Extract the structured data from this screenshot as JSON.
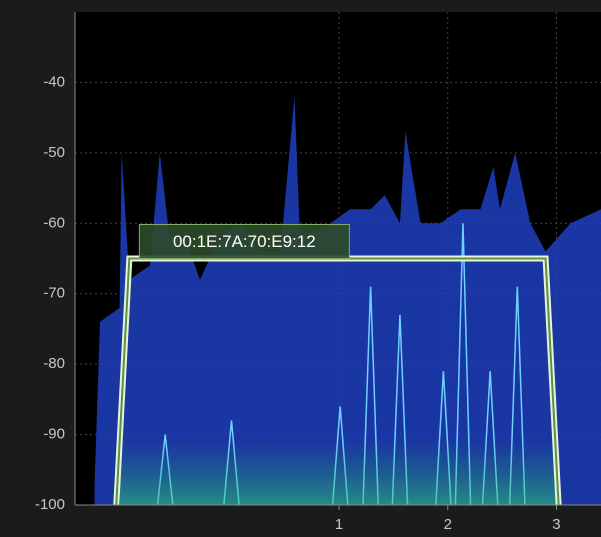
{
  "chart_data": {
    "type": "spectrum",
    "xlim": [
      -1.43,
      3.41
    ],
    "ylim": [
      -100,
      -30
    ],
    "xticks": [
      1,
      2,
      3
    ],
    "yticks": [
      -100,
      -90,
      -80,
      -70,
      -60,
      -50,
      -40
    ],
    "grid": true,
    "series": [
      {
        "kind": "area",
        "color": "#1f3fc0",
        "x": [
          -1.25,
          -1.2,
          -1.02,
          -1.0,
          -0.93,
          -0.74,
          -0.65,
          -0.56,
          -0.42,
          -0.28,
          -0.1,
          0.09,
          0.27,
          0.46,
          0.59,
          0.64,
          0.92,
          1.1,
          1.29,
          1.42,
          1.56,
          1.61,
          1.75,
          1.93,
          2.12,
          2.3,
          2.42,
          2.48,
          2.62,
          2.76,
          2.9,
          3.13,
          3.41
        ],
        "values": [
          -97,
          -74,
          -72,
          -50,
          -68,
          -66,
          -50,
          -62,
          -62,
          -68,
          -62,
          -60,
          -64,
          -64,
          -42,
          -62,
          -60,
          -58,
          -58,
          -56,
          -60,
          -47,
          -60,
          -60,
          -58,
          -58,
          -52,
          -58,
          -50,
          -60,
          -64,
          -60,
          -58
        ]
      },
      {
        "kind": "peaks",
        "color": "#6fd0ff",
        "x": [
          -0.6,
          0.01,
          1.01,
          1.29,
          1.56,
          1.96,
          2.14,
          2.39,
          2.64
        ],
        "values": [
          -90,
          -88,
          -86,
          -69,
          -73,
          -81,
          -60,
          -81,
          -69
        ]
      },
      {
        "kind": "outline",
        "name": "00:1E:7A:70:E9:12",
        "color": "#e6f5d8",
        "x": [
          -1.05,
          -0.93,
          2.9,
          3.02
        ],
        "values": [
          -100,
          -65,
          -65,
          -100
        ]
      }
    ]
  }
}
